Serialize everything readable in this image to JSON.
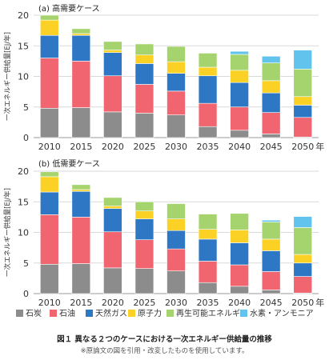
{
  "colors": {
    "石炭": "#8c8c8c",
    "石油": "#f0656f",
    "天然ガス": "#2d77c4",
    "原子力": "#fbd126",
    "再生可能エネルギー": "#a5d36d",
    "水素・アンモニア": "#62c3ec"
  },
  "chart_data": [
    {
      "type": "bar",
      "stacked": true,
      "title": "(a) 高需要ケース",
      "ylabel": "一次エネルギー供給量[EJ/年]",
      "xlabel": "",
      "x_unit": "年",
      "ylim": [
        0,
        20
      ],
      "yticks": [
        0,
        5,
        10,
        15,
        20
      ],
      "categories": [
        "2010",
        "2015",
        "2020",
        "2025",
        "2030",
        "2035",
        "2040",
        "2045",
        "2050"
      ],
      "grid": true,
      "series": [
        {
          "name": "石炭",
          "values": [
            4.8,
            4.9,
            4.2,
            4.0,
            3.7,
            1.8,
            1.2,
            0.6,
            0.1
          ]
        },
        {
          "name": "石油",
          "values": [
            8.2,
            7.6,
            5.9,
            4.7,
            3.9,
            3.8,
            3.8,
            3.5,
            3.2
          ]
        },
        {
          "name": "天然ガス",
          "values": [
            3.7,
            4.2,
            3.8,
            3.4,
            2.9,
            4.5,
            4.0,
            3.2,
            2.0
          ]
        },
        {
          "name": "原子力",
          "values": [
            2.5,
            0.3,
            0.4,
            1.4,
            1.9,
            1.4,
            2.0,
            2.0,
            1.4
          ]
        },
        {
          "name": "再生可能エネルギー",
          "values": [
            0.8,
            0.8,
            1.4,
            1.8,
            2.5,
            2.3,
            2.6,
            2.9,
            4.5
          ]
        },
        {
          "name": "水素・アンモニア",
          "values": [
            0,
            0,
            0,
            0,
            0,
            0,
            0.5,
            1.1,
            3.1
          ]
        }
      ]
    },
    {
      "type": "bar",
      "stacked": true,
      "title": "(b) 低需要ケース",
      "ylabel": "一次エネルギー供給量[EJ/年]",
      "xlabel": "",
      "x_unit": "年",
      "ylim": [
        0,
        20
      ],
      "yticks": [
        0,
        5,
        10,
        15,
        20
      ],
      "categories": [
        "2010",
        "2015",
        "2020",
        "2025",
        "2030",
        "2035",
        "2040",
        "2045",
        "2050"
      ],
      "grid": true,
      "series": [
        {
          "name": "石炭",
          "values": [
            4.8,
            4.9,
            4.2,
            4.1,
            3.7,
            1.8,
            1.2,
            0.6,
            0.1
          ]
        },
        {
          "name": "石油",
          "values": [
            8.1,
            7.6,
            5.9,
            4.7,
            3.6,
            3.5,
            3.5,
            3.0,
            2.7
          ]
        },
        {
          "name": "天然ガス",
          "values": [
            3.7,
            4.2,
            3.8,
            3.4,
            3.0,
            3.6,
            3.6,
            3.4,
            2.2
          ]
        },
        {
          "name": "原子力",
          "values": [
            2.5,
            0.3,
            0.4,
            1.3,
            1.9,
            1.6,
            2.1,
            1.9,
            1.4
          ]
        },
        {
          "name": "再生可能エネルギー",
          "values": [
            0.8,
            0.8,
            1.4,
            1.5,
            2.5,
            2.5,
            2.7,
            2.8,
            4.4
          ]
        },
        {
          "name": "水素・アンモニア",
          "values": [
            0,
            0,
            0,
            0,
            0,
            0,
            0,
            0.3,
            1.8
          ]
        }
      ]
    }
  ],
  "legend": [
    "石炭",
    "石油",
    "天然ガス",
    "原子力",
    "再生可能エネルギー",
    "水素・アンモニア"
  ],
  "caption": {
    "title": "図１ 異なる２つのケースにおける一次エネルギー供給量の推移",
    "note": "※原論文の図を引用・改変したものを使用しています。"
  }
}
